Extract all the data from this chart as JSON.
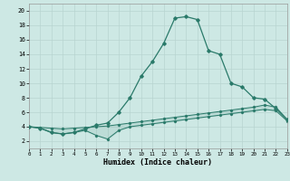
{
  "title": "",
  "xlabel": "Humidex (Indice chaleur)",
  "xlim": [
    0,
    23
  ],
  "ylim": [
    1,
    21
  ],
  "xticks": [
    0,
    1,
    2,
    3,
    4,
    5,
    6,
    7,
    8,
    9,
    10,
    11,
    12,
    13,
    14,
    15,
    16,
    17,
    18,
    19,
    20,
    21,
    22,
    23
  ],
  "yticks": [
    2,
    4,
    6,
    8,
    10,
    12,
    14,
    16,
    18,
    20
  ],
  "bg_color": "#cde8e4",
  "grid_color": "#b8d4d0",
  "line_color": "#2a7a6a",
  "line_main_x": [
    0,
    1,
    2,
    3,
    4,
    5,
    6,
    7,
    8,
    9,
    10,
    11,
    12,
    13,
    14,
    15,
    16,
    17,
    18,
    19,
    20,
    21,
    22,
    23
  ],
  "line_main_y": [
    4.0,
    3.8,
    3.2,
    3.0,
    3.2,
    3.7,
    4.2,
    4.5,
    6.0,
    8.0,
    11.0,
    13.0,
    15.5,
    19.0,
    19.2,
    18.8,
    14.5,
    14.0,
    10.0,
    9.5,
    8.0,
    7.8,
    6.5,
    5.0
  ],
  "line_upper_x": [
    0,
    1,
    2,
    3,
    4,
    5,
    6,
    7,
    8,
    9,
    10,
    11,
    12,
    13,
    14,
    15,
    16,
    17,
    18,
    19,
    20,
    21,
    22,
    23
  ],
  "line_upper_y": [
    4.0,
    3.9,
    3.8,
    3.7,
    3.8,
    3.9,
    4.0,
    4.1,
    4.3,
    4.5,
    4.7,
    4.9,
    5.1,
    5.3,
    5.5,
    5.7,
    5.9,
    6.1,
    6.3,
    6.5,
    6.7,
    7.0,
    6.7,
    5.0
  ],
  "line_lower_x": [
    0,
    1,
    2,
    3,
    4,
    5,
    6,
    7,
    8,
    9,
    10,
    11,
    12,
    13,
    14,
    15,
    16,
    17,
    18,
    19,
    20,
    21,
    22,
    23
  ],
  "line_lower_y": [
    4.0,
    3.8,
    3.2,
    3.0,
    3.2,
    3.5,
    2.8,
    2.3,
    3.5,
    4.0,
    4.2,
    4.4,
    4.6,
    4.8,
    5.0,
    5.2,
    5.4,
    5.6,
    5.8,
    6.0,
    6.2,
    6.4,
    6.2,
    4.8
  ]
}
